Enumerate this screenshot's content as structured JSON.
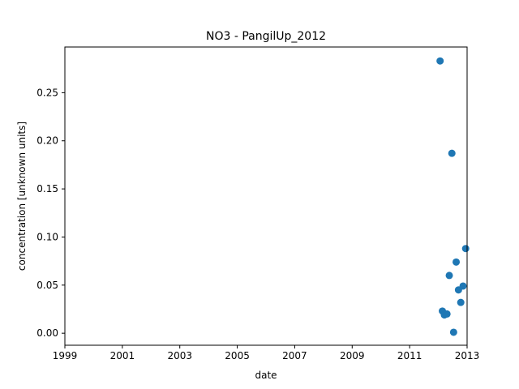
{
  "chart_data": {
    "type": "scatter",
    "title": "NO3 - PangilUp_2012",
    "xlabel": "date",
    "ylabel": "concentration [unknown units]",
    "xlim": [
      1999,
      2013
    ],
    "ylim": [
      -0.0125,
      0.2975
    ],
    "x_ticks": [
      1999,
      2001,
      2003,
      2005,
      2007,
      2009,
      2011,
      2013
    ],
    "x_tick_labels": [
      "1999",
      "2001",
      "2003",
      "2005",
      "2007",
      "2009",
      "2011",
      "2013"
    ],
    "y_ticks": [
      0.0,
      0.05,
      0.1,
      0.15,
      0.2,
      0.25
    ],
    "y_tick_labels": [
      "0.00",
      "0.05",
      "0.10",
      "0.15",
      "0.20",
      "0.25"
    ],
    "grid": false,
    "legend": "none",
    "marker_color": "#1f77b4",
    "points": [
      {
        "x": 2012.06,
        "y": 0.283
      },
      {
        "x": 2012.14,
        "y": 0.023
      },
      {
        "x": 2012.21,
        "y": 0.019
      },
      {
        "x": 2012.3,
        "y": 0.02
      },
      {
        "x": 2012.38,
        "y": 0.06
      },
      {
        "x": 2012.47,
        "y": 0.187
      },
      {
        "x": 2012.53,
        "y": 0.001
      },
      {
        "x": 2012.62,
        "y": 0.074
      },
      {
        "x": 2012.7,
        "y": 0.045
      },
      {
        "x": 2012.78,
        "y": 0.032
      },
      {
        "x": 2012.86,
        "y": 0.049
      },
      {
        "x": 2012.95,
        "y": 0.088
      }
    ]
  }
}
